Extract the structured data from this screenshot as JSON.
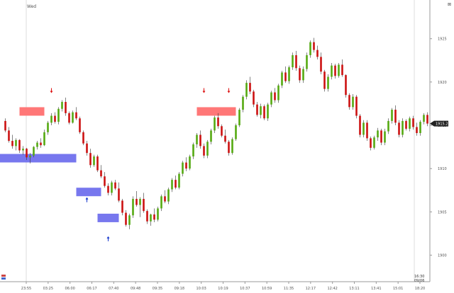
{
  "header": {
    "week_label": "Wed",
    "corner_button": "⊠"
  },
  "footer": {
    "date_box_time": "16:30",
    "date_box_date": "09/06"
  },
  "chart_data": {
    "type": "candlestick",
    "ylim": [
      1898,
      1928
    ],
    "y_ticks": [
      "1925",
      "1920",
      "1915",
      "1910",
      "1905",
      "1900"
    ],
    "x_ticks": [
      "23:55",
      "03:25",
      "06:00",
      "06:17",
      "07:40",
      "09:48",
      "09:35",
      "09:18",
      "10:03",
      "10:19",
      "10:37",
      "10:59",
      "11:35",
      "12:17",
      "12:42",
      "13:11",
      "13:41",
      "15:01",
      "18:20"
    ],
    "current_price_label": "1915.2",
    "grid": false,
    "colors": {
      "up": "#55aa11",
      "down": "#cc1111",
      "sell_zone": "#ff7777",
      "buy_zone": "#7777ee",
      "sell_arrow": "#dd1111",
      "buy_arrow": "#1133cc"
    },
    "candles": [
      [
        1915.5,
        1915.8,
        1914.2,
        1914.4
      ],
      [
        1914.4,
        1914.8,
        1913.0,
        1913.2
      ],
      [
        1913.2,
        1913.9,
        1912.3,
        1912.6
      ],
      [
        1912.6,
        1913.5,
        1912.1,
        1913.3
      ],
      [
        1913.3,
        1913.4,
        1911.8,
        1912.1
      ],
      [
        1912.1,
        1912.6,
        1911.6,
        1912.3
      ],
      [
        1912.3,
        1912.4,
        1911.0,
        1911.3
      ],
      [
        1911.3,
        1911.8,
        1910.6,
        1911.5
      ],
      [
        1911.5,
        1912.6,
        1911.3,
        1912.5
      ],
      [
        1912.5,
        1913.2,
        1912.2,
        1913.0
      ],
      [
        1913.0,
        1913.5,
        1912.4,
        1912.7
      ],
      [
        1912.7,
        1914.5,
        1912.6,
        1914.2
      ],
      [
        1914.2,
        1915.5,
        1913.9,
        1915.3
      ],
      [
        1915.3,
        1916.4,
        1915.0,
        1916.1
      ],
      [
        1916.1,
        1916.5,
        1915.2,
        1915.4
      ],
      [
        1915.4,
        1917.1,
        1915.1,
        1916.9
      ],
      [
        1916.9,
        1917.9,
        1916.6,
        1917.7
      ],
      [
        1917.7,
        1918.2,
        1916.1,
        1916.4
      ],
      [
        1916.4,
        1916.6,
        1915.1,
        1915.3
      ],
      [
        1915.3,
        1916.7,
        1915.2,
        1916.5
      ],
      [
        1916.5,
        1917.1,
        1915.6,
        1915.8
      ],
      [
        1915.8,
        1916.0,
        1914.0,
        1914.2
      ],
      [
        1914.2,
        1914.4,
        1912.7,
        1912.9
      ],
      [
        1912.9,
        1913.2,
        1911.5,
        1911.8
      ],
      [
        1911.8,
        1912.3,
        1910.1,
        1910.4
      ],
      [
        1910.4,
        1911.6,
        1910.2,
        1911.4
      ],
      [
        1911.4,
        1911.6,
        1909.6,
        1909.8
      ],
      [
        1909.8,
        1910.4,
        1908.9,
        1909.1
      ],
      [
        1909.1,
        1909.6,
        1907.8,
        1908.0
      ],
      [
        1908.0,
        1908.3,
        1906.9,
        1907.2
      ],
      [
        1907.2,
        1908.6,
        1906.9,
        1908.4
      ],
      [
        1908.4,
        1908.7,
        1907.5,
        1907.7
      ],
      [
        1907.7,
        1908.4,
        1906.1,
        1906.3
      ],
      [
        1906.3,
        1906.5,
        1904.6,
        1904.9
      ],
      [
        1904.9,
        1905.2,
        1903.3,
        1903.5
      ],
      [
        1903.5,
        1904.8,
        1903.0,
        1904.6
      ],
      [
        1904.6,
        1906.8,
        1904.3,
        1906.5
      ],
      [
        1906.5,
        1907.4,
        1905.6,
        1905.8
      ],
      [
        1905.8,
        1906.7,
        1904.4,
        1906.5
      ],
      [
        1906.5,
        1907.2,
        1904.9,
        1905.1
      ],
      [
        1905.1,
        1905.3,
        1903.6,
        1903.9
      ],
      [
        1903.9,
        1904.8,
        1903.4,
        1904.7
      ],
      [
        1904.7,
        1905.4,
        1903.8,
        1904.1
      ],
      [
        1904.1,
        1905.6,
        1903.9,
        1905.4
      ],
      [
        1905.4,
        1907.0,
        1905.1,
        1906.8
      ],
      [
        1906.8,
        1907.5,
        1906.0,
        1906.2
      ],
      [
        1906.2,
        1907.8,
        1905.9,
        1907.6
      ],
      [
        1907.6,
        1908.9,
        1907.3,
        1908.7
      ],
      [
        1908.7,
        1909.2,
        1907.6,
        1907.8
      ],
      [
        1907.8,
        1909.6,
        1907.6,
        1909.4
      ],
      [
        1909.4,
        1910.9,
        1909.1,
        1910.7
      ],
      [
        1910.7,
        1911.3,
        1909.7,
        1910.0
      ],
      [
        1910.0,
        1911.6,
        1909.8,
        1911.4
      ],
      [
        1911.4,
        1913.0,
        1911.1,
        1912.8
      ],
      [
        1912.8,
        1914.1,
        1912.4,
        1913.9
      ],
      [
        1913.9,
        1914.4,
        1912.3,
        1912.6
      ],
      [
        1912.6,
        1912.9,
        1911.2,
        1911.5
      ],
      [
        1911.5,
        1913.3,
        1911.2,
        1913.1
      ],
      [
        1913.1,
        1914.6,
        1912.8,
        1914.4
      ],
      [
        1914.4,
        1916.1,
        1914.1,
        1915.9
      ],
      [
        1915.9,
        1916.4,
        1914.6,
        1914.9
      ],
      [
        1914.9,
        1915.1,
        1913.6,
        1913.8
      ],
      [
        1913.8,
        1914.5,
        1912.9,
        1913.1
      ],
      [
        1913.1,
        1913.3,
        1911.5,
        1911.8
      ],
      [
        1911.8,
        1913.6,
        1911.6,
        1913.4
      ],
      [
        1913.4,
        1915.2,
        1913.2,
        1915.0
      ],
      [
        1915.0,
        1917.0,
        1914.8,
        1916.8
      ],
      [
        1916.8,
        1918.5,
        1916.5,
        1918.3
      ],
      [
        1918.3,
        1920.2,
        1918.0,
        1919.9
      ],
      [
        1919.9,
        1920.6,
        1918.6,
        1918.9
      ],
      [
        1918.9,
        1919.1,
        1917.1,
        1917.4
      ],
      [
        1917.4,
        1917.7,
        1916.0,
        1916.2
      ],
      [
        1916.2,
        1917.5,
        1915.8,
        1917.2
      ],
      [
        1917.2,
        1917.4,
        1915.6,
        1915.8
      ],
      [
        1915.8,
        1917.6,
        1915.5,
        1917.4
      ],
      [
        1917.4,
        1919.0,
        1917.1,
        1918.8
      ],
      [
        1918.8,
        1919.3,
        1917.6,
        1917.9
      ],
      [
        1917.9,
        1919.8,
        1917.6,
        1919.6
      ],
      [
        1919.6,
        1921.3,
        1919.3,
        1921.1
      ],
      [
        1921.1,
        1921.8,
        1919.9,
        1920.1
      ],
      [
        1920.1,
        1921.9,
        1919.8,
        1921.7
      ],
      [
        1921.7,
        1923.4,
        1921.4,
        1923.1
      ],
      [
        1923.1,
        1923.6,
        1921.3,
        1921.6
      ],
      [
        1921.6,
        1921.9,
        1919.9,
        1920.2
      ],
      [
        1920.2,
        1921.8,
        1919.9,
        1921.5
      ],
      [
        1921.5,
        1923.4,
        1921.2,
        1923.1
      ],
      [
        1923.1,
        1924.8,
        1922.8,
        1924.6
      ],
      [
        1924.6,
        1925.1,
        1923.4,
        1923.7
      ],
      [
        1923.7,
        1924.2,
        1922.6,
        1922.9
      ],
      [
        1922.9,
        1923.4,
        1920.9,
        1921.2
      ],
      [
        1921.2,
        1921.4,
        1918.9,
        1919.2
      ],
      [
        1919.2,
        1920.9,
        1918.9,
        1920.6
      ],
      [
        1920.6,
        1922.2,
        1920.3,
        1921.9
      ],
      [
        1921.9,
        1922.1,
        1920.4,
        1920.7
      ],
      [
        1920.7,
        1922.2,
        1920.5,
        1922.0
      ],
      [
        1922.0,
        1922.6,
        1920.6,
        1920.8
      ],
      [
        1920.8,
        1920.9,
        1918.2,
        1918.5
      ],
      [
        1918.5,
        1918.7,
        1916.8,
        1917.1
      ],
      [
        1917.1,
        1918.6,
        1916.8,
        1918.3
      ],
      [
        1918.3,
        1918.5,
        1915.8,
        1916.1
      ],
      [
        1916.1,
        1916.3,
        1913.6,
        1913.9
      ],
      [
        1913.9,
        1915.6,
        1913.6,
        1915.3
      ],
      [
        1915.3,
        1915.6,
        1913.2,
        1913.5
      ],
      [
        1913.5,
        1913.7,
        1912.1,
        1912.4
      ],
      [
        1912.4,
        1913.8,
        1912.2,
        1913.6
      ],
      [
        1913.6,
        1914.7,
        1913.2,
        1914.4
      ],
      [
        1914.4,
        1914.6,
        1912.7,
        1913.0
      ],
      [
        1913.0,
        1914.6,
        1912.7,
        1914.3
      ],
      [
        1914.3,
        1915.8,
        1914.0,
        1915.5
      ],
      [
        1915.5,
        1917.0,
        1915.2,
        1916.8
      ],
      [
        1916.8,
        1917.3,
        1915.0,
        1915.3
      ],
      [
        1915.3,
        1915.6,
        1913.6,
        1913.9
      ],
      [
        1913.9,
        1915.8,
        1913.6,
        1915.5
      ],
      [
        1915.5,
        1915.7,
        1914.4,
        1914.6
      ],
      [
        1914.6,
        1916.0,
        1914.3,
        1915.8
      ],
      [
        1915.8,
        1916.1,
        1914.5,
        1914.8
      ],
      [
        1914.8,
        1915.3,
        1913.8,
        1914.1
      ],
      [
        1914.1,
        1915.6,
        1913.8,
        1915.4
      ],
      [
        1915.4,
        1916.4,
        1915.1,
        1916.2
      ],
      [
        1916.2,
        1916.5,
        1914.9,
        1915.2
      ]
    ],
    "zones": [
      {
        "kind": "sell",
        "start": 4,
        "end": 11,
        "price": 1916.6
      },
      {
        "kind": "buy",
        "start": -3,
        "end": 20,
        "price": 1911.2
      },
      {
        "kind": "buy",
        "start": 20,
        "end": 27,
        "price": 1907.3
      },
      {
        "kind": "buy",
        "start": 26,
        "end": 32,
        "price": 1904.3
      },
      {
        "kind": "sell",
        "start": 54,
        "end": 65,
        "price": 1916.6
      }
    ],
    "arrows": [
      {
        "kind": "sell",
        "index": 13,
        "price": 1918.8
      },
      {
        "kind": "sell",
        "index": 56,
        "price": 1918.8
      },
      {
        "kind": "sell",
        "index": 63,
        "price": 1918.8
      },
      {
        "kind": "buy",
        "index": 23,
        "price": 1906.6
      },
      {
        "kind": "buy",
        "index": 29,
        "price": 1902.1
      }
    ]
  }
}
